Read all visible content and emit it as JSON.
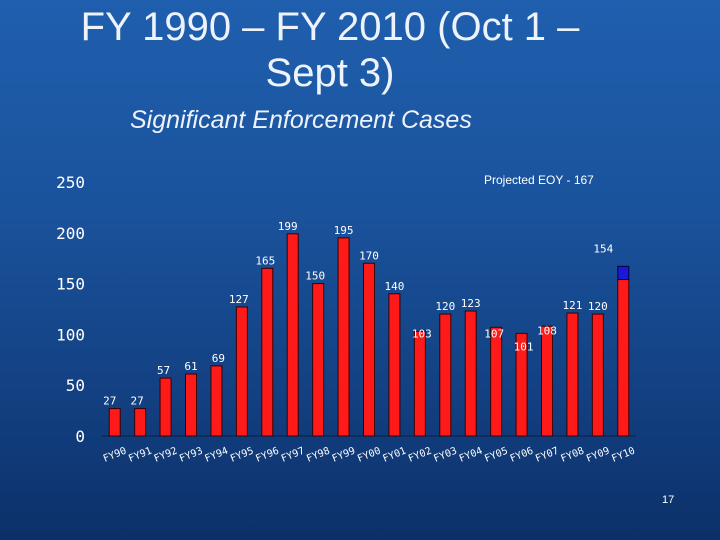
{
  "slide": {
    "title_line1": "FY 1990 – FY 2010 (Oct 1 –",
    "title_line2": "Sept 3)",
    "subtitle": "Significant Enforcement Cases",
    "page_number": "17"
  },
  "chart_data": {
    "type": "bar",
    "title": "",
    "xlabel": "",
    "ylabel": "",
    "ylim": [
      0,
      250
    ],
    "y_ticks": [
      0,
      50,
      100,
      150,
      200,
      250
    ],
    "categories": [
      "FY90",
      "FY91",
      "FY92",
      "FY93",
      "FY94",
      "FY95",
      "FY96",
      "FY97",
      "FY98",
      "FY99",
      "FY00",
      "FY01",
      "FY02",
      "FY03",
      "FY04",
      "FY05",
      "FY06",
      "FY07",
      "FY08",
      "FY09",
      "FY10"
    ],
    "values": [
      27,
      27,
      57,
      61,
      69,
      127,
      165,
      199,
      150,
      195,
      170,
      140,
      103,
      120,
      123,
      107,
      101,
      108,
      121,
      120,
      154
    ],
    "projection": {
      "label": "Projected EOY - 167",
      "category": "FY10",
      "value": 167,
      "color": "#1a1ad6"
    },
    "bar_color": "#ff1a1a",
    "grid": false,
    "legend": "none"
  }
}
